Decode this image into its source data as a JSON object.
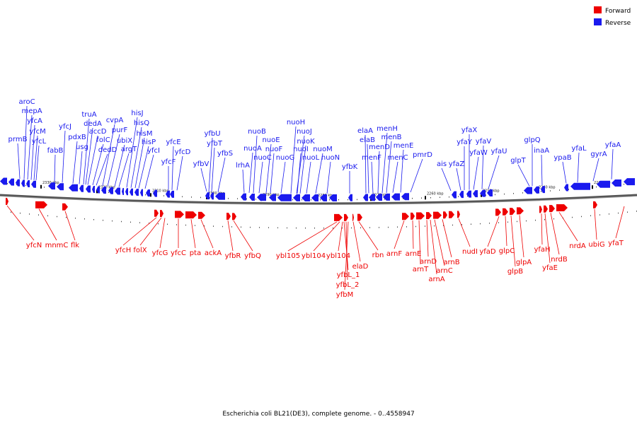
{
  "legend": {
    "forward": {
      "label": "Forward",
      "color": "#ee0000"
    },
    "reverse": {
      "label": "Reverse",
      "color": "#1a1aee"
    }
  },
  "caption": "Escherichia coli BL21(DE3), complete genome. - 0..4558947",
  "ticks": [
    "2330 kbp",
    "2320 kbp",
    "2310 kbp",
    "2300 kbp",
    "2290 kbp",
    "2280 kbp",
    "2270 kbp",
    "2260 kbp",
    "2250 kbp",
    "2240 kbp",
    "2230 kbp"
  ],
  "reverse_genes": [
    "aroC",
    "mepA",
    "yfcA",
    "yfcM",
    "yfcL",
    "prmB",
    "fabB",
    "yfcJ",
    "pdxB",
    "usg",
    "truA",
    "dedA",
    "accD",
    "folC",
    "dedD",
    "cvpA",
    "purF",
    "ubiX",
    "argT",
    "hisJ",
    "hisQ",
    "hisM",
    "hisP",
    "yfcI",
    "yfcE",
    "yfcD",
    "yfcF",
    "yfbU",
    "yfbT",
    "yfbV",
    "yfbS",
    "lrhA",
    "nuoA",
    "nuoB",
    "nuoC",
    "nuoE",
    "nuoF",
    "nuoG",
    "nuoH",
    "nuoJ",
    "nuoK",
    "nuoI",
    "nuoL",
    "nuoM",
    "nuoN",
    "yfbK",
    "elaA",
    "elaB",
    "menF",
    "menD",
    "menH",
    "menB",
    "menC",
    "menE",
    "pmrD",
    "ais",
    "yfaZ",
    "yfaY",
    "yfaX",
    "yfaW",
    "yfaV",
    "yfaU",
    "glpT",
    "glpQ",
    "inaA",
    "ypaB",
    "yfaL",
    "gyrA",
    "yfaA"
  ],
  "forward_genes": [
    "yfcN",
    "mnmC",
    "flk",
    "yfcH",
    "folX",
    "yfcG",
    "yfcC",
    "pta",
    "ackA",
    "yfbR",
    "yfbQ",
    "ybl105",
    "ybl104",
    "ybl104",
    "yfbL_1",
    "yfbL_2",
    "yfbM",
    "elaD",
    "rbn",
    "arnF",
    "arnE",
    "arnT",
    "arnD",
    "arnA",
    "arnC",
    "arnB",
    "nudI",
    "yfaD",
    "glpC",
    "glpB",
    "glpA",
    "yfaH",
    "yfaE",
    "nrdB",
    "nrdA",
    "ubiG",
    "yfaT"
  ]
}
